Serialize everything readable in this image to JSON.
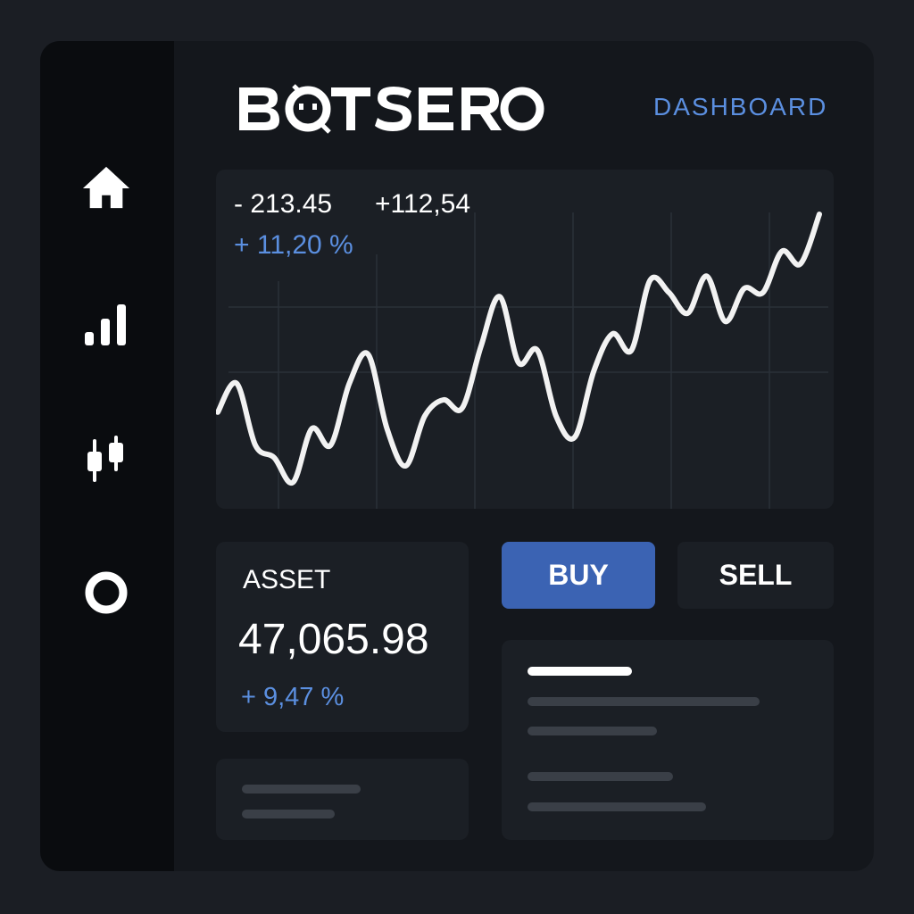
{
  "app": {
    "brand": "BOTSERO"
  },
  "header": {
    "nav_link": "DASHBOARD"
  },
  "sidebar": {
    "items": [
      {
        "icon": "home-icon"
      },
      {
        "icon": "bar-chart-icon"
      },
      {
        "icon": "candlestick-icon"
      },
      {
        "icon": "ring-icon"
      }
    ]
  },
  "chart": {
    "change_negative": "- 213.45",
    "change_positive": "+112,54",
    "change_percent": "+ 11,20 %",
    "line_color": "#f2f2f2"
  },
  "chart_data": {
    "type": "line",
    "series": [
      {
        "values": [
          48,
          55,
          40,
          37,
          31,
          44,
          40,
          55,
          62,
          44,
          35,
          47,
          51,
          49,
          64,
          76,
          60,
          63,
          47,
          42,
          58,
          67,
          63,
          80,
          77,
          72,
          81,
          70,
          78,
          77,
          87,
          84,
          96
        ]
      }
    ]
  },
  "asset": {
    "label": "ASSET",
    "value": "47,065.98",
    "change": "+ 9,47 %"
  },
  "actions": {
    "buy_label": "BUY",
    "sell_label": "SELL"
  },
  "colors": {
    "accent": "#5b8fe0",
    "buy": "#3b63b3",
    "panel": "#1b1f25",
    "background": "#14171c"
  }
}
